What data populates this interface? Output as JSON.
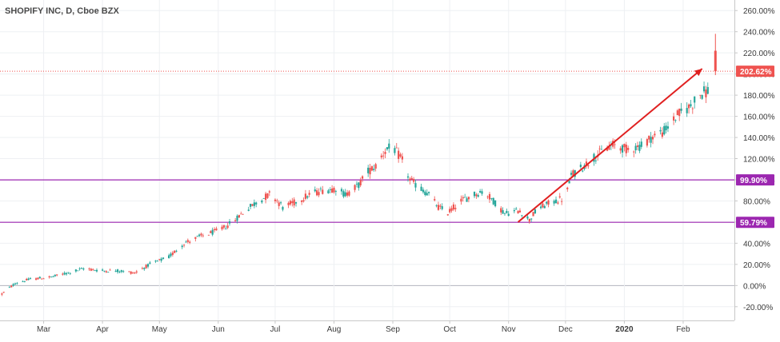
{
  "chart_data": {
    "type": "candlestick",
    "title": "SHOPIFY INC, D, Cboe BZX",
    "y_unit": "%",
    "y_ticks": [
      "260.00%",
      "240.00%",
      "220.00%",
      "200.00%",
      "180.00%",
      "160.00%",
      "140.00%",
      "120.00%",
      "100.00%",
      "80.00%",
      "60.00%",
      "40.00%",
      "20.00%",
      "0.00%",
      "-20.00%"
    ],
    "y_tick_values": [
      260,
      240,
      220,
      200,
      180,
      160,
      140,
      120,
      100,
      80,
      60,
      40,
      20,
      0,
      -20
    ],
    "ylim": [
      -33,
      270
    ],
    "x_ticks": [
      "Mar",
      "Apr",
      "May",
      "Jun",
      "Jul",
      "Aug",
      "Sep",
      "Oct",
      "Nov",
      "Dec",
      "2020",
      "Feb"
    ],
    "x_tick_dates": [
      "2019-03-01",
      "2019-04-01",
      "2019-05-01",
      "2019-06-01",
      "2019-07-01",
      "2019-08-01",
      "2019-09-01",
      "2019-10-01",
      "2019-11-01",
      "2019-12-01",
      "2020-01-01",
      "2020-02-01"
    ],
    "xlim": [
      "2019-02-06",
      "2020-02-28"
    ],
    "grid": true,
    "colors": {
      "up": "#26a69a",
      "down": "#ef5350",
      "wick": "#555555",
      "zero_line": "#b2b5be",
      "horizontal_line": "#9c27b0",
      "price_line": "#ef5350",
      "trend_arrow": "#e02020"
    },
    "horizontal_lines": [
      {
        "value": 99.9,
        "label": "99.90%"
      },
      {
        "value": 59.79,
        "label": "59.79%"
      }
    ],
    "last_price": {
      "value": 202.62,
      "label": "202.62%"
    },
    "trend_arrow": {
      "from_date": "2019-11-06",
      "from_value": 60,
      "to_date": "2020-02-11",
      "to_value": 205
    },
    "candles_path": [
      [
        "2019-02-07",
        -8
      ],
      [
        "2019-02-14",
        2
      ],
      [
        "2019-02-22",
        6
      ],
      [
        "2019-03-05",
        8
      ],
      [
        "2019-03-14",
        12
      ],
      [
        "2019-03-22",
        16
      ],
      [
        "2019-04-01",
        14
      ],
      [
        "2019-04-10",
        14
      ],
      [
        "2019-04-18",
        12
      ],
      [
        "2019-04-26",
        20
      ],
      [
        "2019-05-06",
        27
      ],
      [
        "2019-05-14",
        40
      ],
      [
        "2019-05-22",
        46
      ],
      [
        "2019-06-01",
        52
      ],
      [
        "2019-06-08",
        59
      ],
      [
        "2019-06-14",
        69
      ],
      [
        "2019-06-22",
        80
      ],
      [
        "2019-06-29",
        87
      ],
      [
        "2019-07-05",
        74
      ],
      [
        "2019-07-12",
        79
      ],
      [
        "2019-07-19",
        86
      ],
      [
        "2019-07-26",
        90
      ],
      [
        "2019-08-02",
        92
      ],
      [
        "2019-08-07",
        86
      ],
      [
        "2019-08-14",
        95
      ],
      [
        "2019-08-19",
        108
      ],
      [
        "2019-08-23",
        113
      ],
      [
        "2019-08-28",
        128
      ],
      [
        "2019-09-01",
        131
      ],
      [
        "2019-09-06",
        118
      ],
      [
        "2019-09-10",
        100
      ],
      [
        "2019-09-14",
        94
      ],
      [
        "2019-09-20",
        86
      ],
      [
        "2019-09-25",
        74
      ],
      [
        "2019-09-30",
        69
      ],
      [
        "2019-10-07",
        80
      ],
      [
        "2019-10-15",
        87
      ],
      [
        "2019-10-19",
        89
      ],
      [
        "2019-10-23",
        82
      ],
      [
        "2019-10-30",
        68
      ],
      [
        "2019-11-07",
        71
      ],
      [
        "2019-11-12",
        62
      ],
      [
        "2019-11-16",
        72
      ],
      [
        "2019-11-24",
        79
      ],
      [
        "2019-12-01",
        83
      ],
      [
        "2019-12-04",
        104
      ],
      [
        "2019-12-10",
        112
      ],
      [
        "2019-12-18",
        124
      ],
      [
        "2019-12-26",
        133
      ],
      [
        "2020-01-02",
        129
      ],
      [
        "2020-01-10",
        132
      ],
      [
        "2020-01-15",
        140
      ],
      [
        "2020-01-22",
        146
      ],
      [
        "2020-01-29",
        161
      ],
      [
        "2020-02-05",
        170
      ],
      [
        "2020-02-10",
        181
      ],
      [
        "2020-02-14",
        184
      ]
    ],
    "last_candle": {
      "date": "2020-02-18",
      "open": 222,
      "high": 238,
      "low": 199,
      "close": 202.62
    }
  }
}
